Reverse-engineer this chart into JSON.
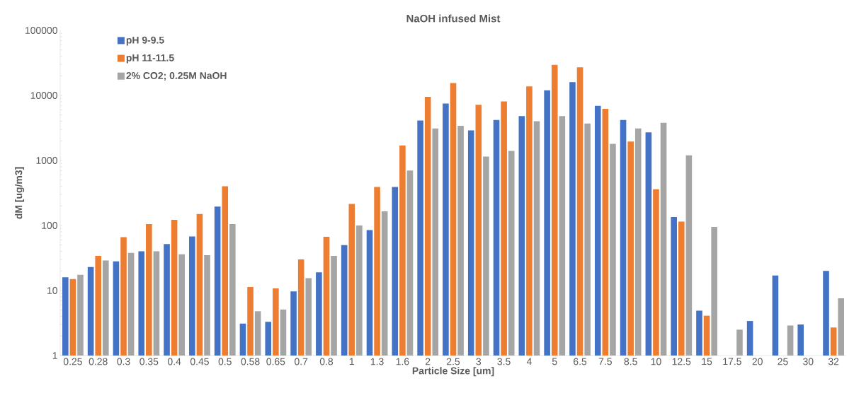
{
  "chart_data": {
    "type": "bar",
    "title": "NaOH infused Mist",
    "xlabel": "Particle Size [um]",
    "ylabel": "dM [ug/m3]",
    "categories": [
      "0.25",
      "0.28",
      "0.3",
      "0.35",
      "0.4",
      "0.45",
      "0.5",
      "0.58",
      "0.65",
      "0.7",
      "0.8",
      "1",
      "1.3",
      "1.6",
      "2",
      "2.5",
      "3",
      "3.5",
      "4",
      "5",
      "6.5",
      "7.5",
      "8.5",
      "10",
      "12.5",
      "15",
      "17.5",
      "20",
      "25",
      "30",
      "32"
    ],
    "series": [
      {
        "name": "pH 9-9.5",
        "color": "#4472c4",
        "values": [
          16,
          23,
          28,
          40,
          52,
          68,
          195,
          3.1,
          3.3,
          9.7,
          19,
          50,
          85,
          390,
          4100,
          7500,
          2900,
          4200,
          4800,
          12000,
          16000,
          6900,
          4200,
          2700,
          135,
          4.9,
          null,
          3.4,
          17,
          3,
          20
        ]
      },
      {
        "name": "pH 11-11.5",
        "color": "#ed7d31",
        "values": [
          15,
          34,
          66,
          105,
          122,
          150,
          400,
          11.3,
          10.8,
          30,
          67,
          215,
          390,
          1700,
          9500,
          15500,
          7200,
          8100,
          13800,
          29500,
          27000,
          6200,
          1950,
          360,
          115,
          4.1,
          null,
          null,
          null,
          null,
          2.7
        ]
      },
      {
        "name": "2% CO2; 0.25M NaOH",
        "color": "#a5a5a5",
        "values": [
          17.5,
          29,
          38,
          40,
          36,
          35,
          105,
          4.8,
          5.1,
          15.5,
          34,
          100,
          165,
          700,
          3100,
          3400,
          1150,
          1400,
          4000,
          4800,
          3700,
          1800,
          3100,
          3800,
          1200,
          95,
          2.5,
          null,
          2.9,
          null,
          7.6
        ]
      }
    ],
    "log": true,
    "ylim": [
      1,
      100000
    ],
    "yticks": [
      1,
      10,
      100,
      1000,
      10000,
      100000
    ],
    "legend": "top left",
    "grid": false
  }
}
